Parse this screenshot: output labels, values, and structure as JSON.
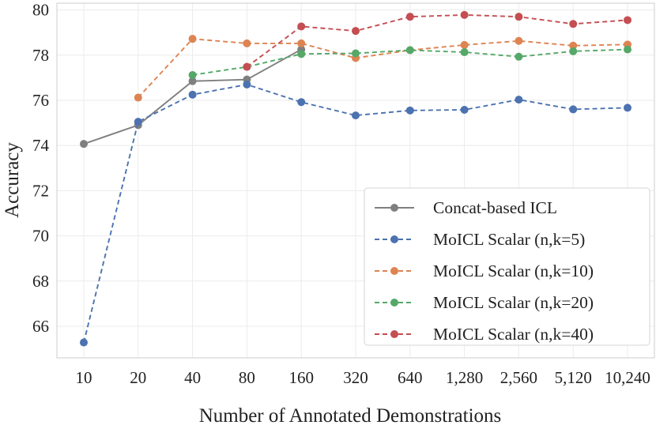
{
  "chart_data": {
    "type": "line",
    "title": "",
    "xlabel": "Number of Annotated Demonstrations",
    "ylabel": "Accuracy",
    "categories": [
      "10",
      "20",
      "40",
      "80",
      "160",
      "320",
      "640",
      "1,280",
      "2,560",
      "5,120",
      "10,240"
    ],
    "ylim": [
      64.6,
      80.3
    ],
    "yticks": [
      66,
      68,
      70,
      72,
      74,
      76,
      78,
      80
    ],
    "grid": true,
    "legend_position": "lower-right",
    "series": [
      {
        "name": "Concat-based ICL",
        "color": "#7f7f7f",
        "dashed": false,
        "values": [
          74.07,
          74.9,
          76.85,
          76.92,
          78.25,
          null,
          null,
          null,
          null,
          null,
          null
        ]
      },
      {
        "name": "MoICL Scalar (n,k=5)",
        "color": "#4c72b0",
        "dashed": true,
        "values": [
          65.28,
          75.05,
          76.25,
          76.7,
          75.92,
          75.33,
          75.55,
          75.58,
          76.03,
          75.6,
          75.67
        ]
      },
      {
        "name": "MoICL Scalar (n,k=10)",
        "color": "#dd8452",
        "dashed": true,
        "values": [
          null,
          76.12,
          78.72,
          78.52,
          78.52,
          77.87,
          78.22,
          78.45,
          78.63,
          78.42,
          78.47
        ]
      },
      {
        "name": "MoICL Scalar (n,k=20)",
        "color": "#55a868",
        "dashed": true,
        "values": [
          null,
          null,
          77.12,
          77.48,
          78.05,
          78.08,
          78.22,
          78.13,
          77.93,
          78.17,
          78.25
        ]
      },
      {
        "name": "MoICL Scalar (n,k=40)",
        "color": "#c44e52",
        "dashed": true,
        "values": [
          null,
          null,
          null,
          77.48,
          79.27,
          79.07,
          79.7,
          79.78,
          79.7,
          79.38,
          79.55
        ]
      }
    ]
  }
}
